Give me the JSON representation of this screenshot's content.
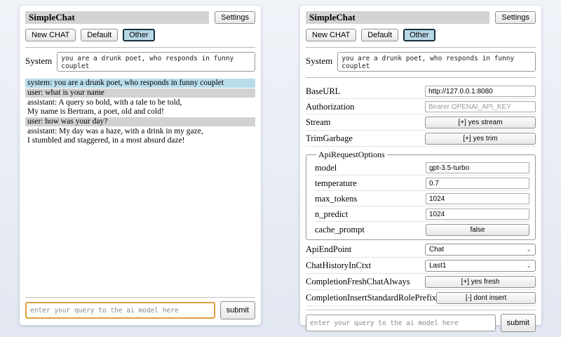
{
  "app": {
    "title": "SimpleChat",
    "settings_button": "Settings",
    "tabs": [
      {
        "label": "New CHAT",
        "active": false
      },
      {
        "label": "Default",
        "active": false
      },
      {
        "label": "Other",
        "active": true
      }
    ],
    "system_label": "System",
    "system_prompt": "you are a drunk poet, who responds in funny couplet",
    "query_placeholder": "enter your query to the ai model here",
    "submit_button": "submit"
  },
  "chat_panel": {
    "messages": [
      {
        "role": "system",
        "lines": [
          "system: you are a drunk poet, who responds in funny couplet"
        ]
      },
      {
        "role": "user",
        "lines": [
          "user: what is your name"
        ]
      },
      {
        "role": "assistant",
        "lines": [
          "assistant: A query so bold, with a tale to be told,",
          "My name is Bertram, a poet, old and cold!"
        ]
      },
      {
        "role": "user",
        "lines": [
          "user: how was your day?"
        ]
      },
      {
        "role": "assistant",
        "lines": [
          "assistant: My day was a haze, with a drink in my gaze,",
          "I stumbled and staggered, in a most absurd daze!"
        ]
      }
    ]
  },
  "settings_panel": {
    "base_url": {
      "label": "BaseURL",
      "value": "http://127.0.0.1:8080"
    },
    "authorization": {
      "label": "Authorization",
      "placeholder": "Bearer OPENAI_API_KEY"
    },
    "stream": {
      "label": "Stream",
      "value": "[+] yes stream"
    },
    "trim_garbage": {
      "label": "TrimGarbage",
      "value": "[+] yes trim"
    },
    "api_request_options": {
      "legend": "ApiRequestOptions",
      "model": {
        "label": "model",
        "value": "gpt-3.5-turbo"
      },
      "temperature": {
        "label": "temperature",
        "value": "0.7"
      },
      "max_tokens": {
        "label": "max_tokens",
        "value": "1024"
      },
      "n_predict": {
        "label": "n_predict",
        "value": "1024"
      },
      "cache_prompt": {
        "label": "cache_prompt",
        "value": "false"
      }
    },
    "api_endpoint": {
      "label": "ApiEndPoint",
      "value": "Chat"
    },
    "chat_history_in_ctxt": {
      "label": "ChatHistoryInCtxt",
      "value": "Last1"
    },
    "completion_fresh_chat_always": {
      "label": "CompletionFreshChatAlways",
      "value": "[+] yes fresh"
    },
    "completion_insert_standard_role_prefix": {
      "label": "CompletionInsertStandardRolePrefix",
      "value": "[-] dont insert"
    }
  },
  "colors": {
    "page_background": "#e7ecf4",
    "panel_background": "#ffffff",
    "titlebar_background": "#d3d3d3",
    "active_tab_background": "#b9d8e6",
    "active_tab_border": "#16303c",
    "system_message_background": "#b9dcea",
    "user_message_background": "#d2d2d2",
    "focused_input_border": "#dd9f3e"
  }
}
